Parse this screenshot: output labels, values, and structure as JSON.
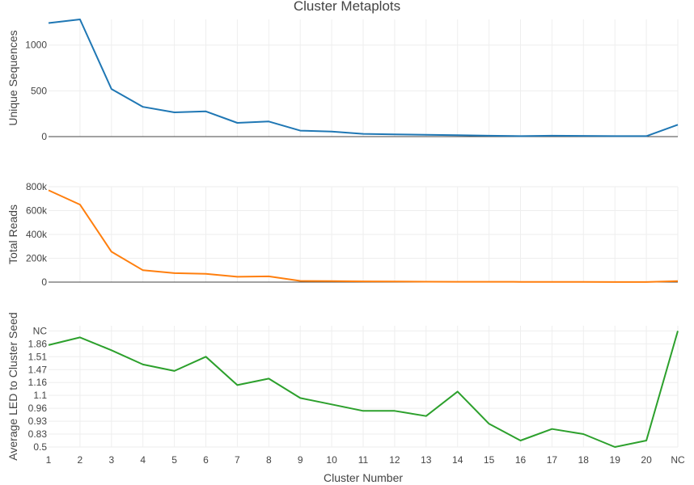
{
  "chart_data": {
    "type": "line",
    "title": "Cluster Metaplots",
    "xlabel": "Cluster Number",
    "categories": [
      "1",
      "2",
      "3",
      "4",
      "5",
      "6",
      "7",
      "8",
      "9",
      "10",
      "11",
      "12",
      "13",
      "14",
      "15",
      "16",
      "17",
      "18",
      "19",
      "20",
      "NC"
    ],
    "grid": true,
    "legend": "none",
    "colors": [
      "#1f77b4",
      "#ff7f0e",
      "#2ca02c"
    ],
    "panels": [
      {
        "ylabel": "Unique Sequences",
        "ylim": [
          0,
          1280
        ],
        "yticks": [
          0,
          500,
          1000
        ],
        "ytick_labels": [
          "0",
          "500",
          "1000"
        ],
        "values": [
          1240,
          1280,
          520,
          325,
          265,
          275,
          150,
          165,
          65,
          55,
          30,
          25,
          20,
          15,
          10,
          5,
          10,
          8,
          5,
          5,
          130
        ]
      },
      {
        "ylabel": "Total Reads",
        "ylim": [
          0,
          800000
        ],
        "yticks": [
          0,
          200000,
          400000,
          600000,
          800000
        ],
        "ytick_labels": [
          "0",
          "200k",
          "400k",
          "600k",
          "800k"
        ],
        "values": [
          770000,
          650000,
          255000,
          100000,
          75000,
          70000,
          45000,
          48000,
          10000,
          8000,
          6000,
          5000,
          3500,
          3000,
          2500,
          2000,
          1500,
          1200,
          1000,
          800,
          8000
        ]
      },
      {
        "ylabel": "Average LED to Cluster Seed",
        "ytick_labels": [
          "0.5",
          "0.83",
          "0.93",
          "0.96",
          "1.1",
          "1.16",
          "1.47",
          "1.51",
          "1.86",
          "NC"
        ],
        "ytick_levels": [
          0.0,
          0.1,
          0.2,
          0.3,
          0.4,
          0.5,
          0.6,
          0.7,
          0.8,
          0.9
        ],
        "ylim": [
          0,
          0.94
        ],
        "values": [
          0.79,
          0.85,
          0.75,
          0.64,
          0.59,
          0.7,
          0.48,
          0.53,
          0.38,
          0.33,
          0.28,
          0.28,
          0.24,
          0.43,
          0.18,
          0.05,
          0.14,
          0.1,
          0.0,
          0.05,
          0.9
        ]
      }
    ]
  }
}
